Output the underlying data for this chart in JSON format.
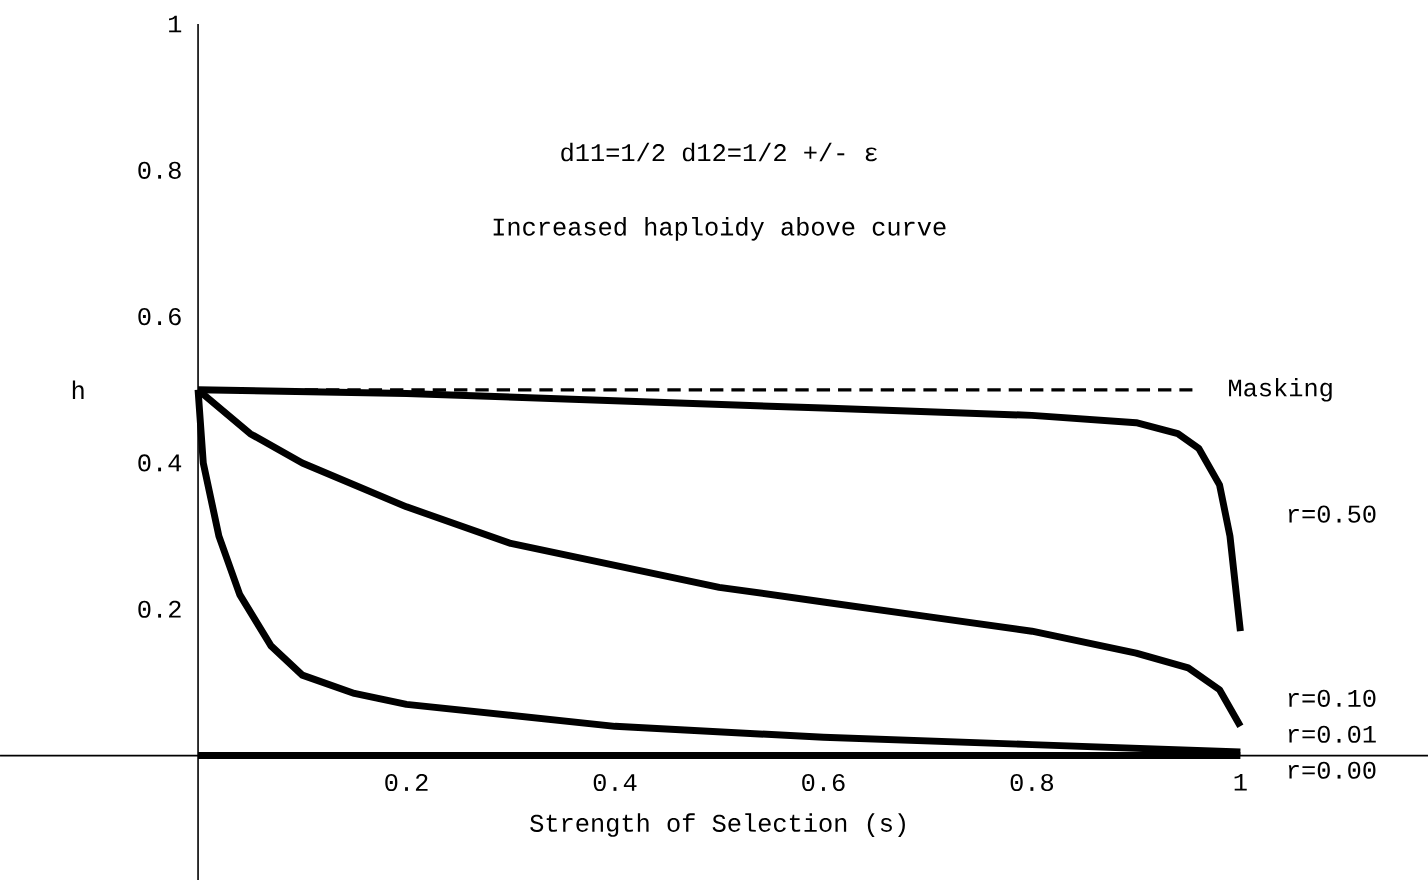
{
  "chart_data": {
    "type": "line",
    "xlabel": "Strength of Selection (s)",
    "ylabel": "h",
    "annotations": [
      "d11=1/2     d12=1/2 +/- ε",
      "Increased haploidy above curve"
    ],
    "xlim": [
      -0.19,
      1.18
    ],
    "ylim": [
      -0.17,
      1
    ],
    "xticks": [
      0.2,
      0.4,
      0.6,
      0.8,
      1
    ],
    "yticks": [
      0.2,
      0.4,
      0.6,
      0.8,
      1
    ],
    "series": [
      {
        "name": "Masking",
        "color": "#000000",
        "line_style": "dashed",
        "x": [
          0,
          0.954
        ],
        "values": [
          0.5,
          0.5
        ]
      },
      {
        "name": "r=0.50",
        "color": "#000000",
        "line_style": "solid",
        "x": [
          0,
          0.2,
          0.4,
          0.6,
          0.8,
          0.9,
          0.94,
          0.96,
          0.98,
          0.99,
          1.0
        ],
        "values": [
          0.5,
          0.495,
          0.485,
          0.475,
          0.465,
          0.455,
          0.44,
          0.42,
          0.37,
          0.3,
          0.17
        ]
      },
      {
        "name": "r=0.10",
        "color": "#000000",
        "line_style": "solid",
        "x": [
          0,
          0.05,
          0.1,
          0.2,
          0.3,
          0.4,
          0.5,
          0.6,
          0.7,
          0.8,
          0.9,
          0.95,
          0.98,
          1.0
        ],
        "values": [
          0.5,
          0.44,
          0.4,
          0.34,
          0.29,
          0.26,
          0.23,
          0.21,
          0.19,
          0.17,
          0.14,
          0.12,
          0.09,
          0.04
        ]
      },
      {
        "name": "r=0.01",
        "color": "#000000",
        "line_style": "solid",
        "x": [
          0,
          0.005,
          0.02,
          0.04,
          0.07,
          0.1,
          0.15,
          0.2,
          0.3,
          0.4,
          0.6,
          0.8,
          1.0
        ],
        "values": [
          0.5,
          0.4,
          0.3,
          0.22,
          0.15,
          0.11,
          0.085,
          0.07,
          0.055,
          0.04,
          0.025,
          0.015,
          0.005
        ]
      },
      {
        "name": "r=0.00",
        "color": "#000000",
        "line_style": "solid",
        "x": [
          0,
          1.0
        ],
        "values": [
          0,
          0
        ]
      }
    ]
  }
}
